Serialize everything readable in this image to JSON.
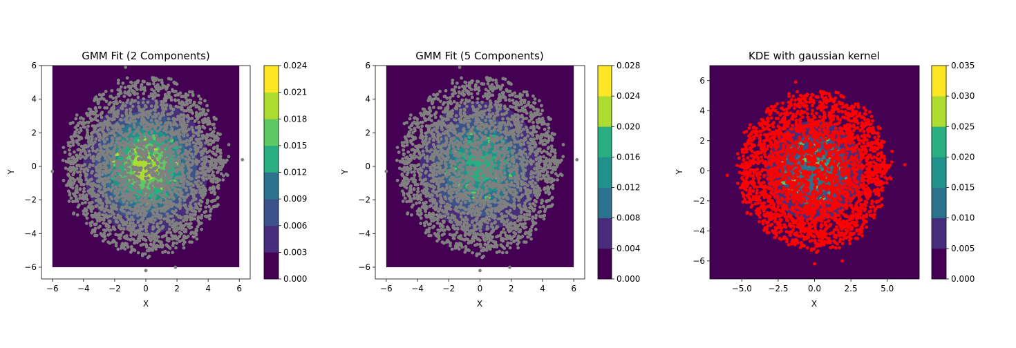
{
  "chart_data": [
    {
      "type": "contourf+scatter",
      "title": "GMM Fit (2 Components)",
      "xlabel": "X",
      "ylabel": "Y",
      "xlim": [
        -6.7,
        6.7
      ],
      "ylim": [
        -6.7,
        6.0
      ],
      "xticks": [
        -6,
        -4,
        -2,
        0,
        2,
        4,
        6
      ],
      "yticks": [
        -6,
        -4,
        -2,
        0,
        2,
        4,
        6
      ],
      "contour_extent": [
        -6,
        6,
        -6,
        6
      ],
      "colorbar": {
        "levels": [
          0.0,
          0.003,
          0.006,
          0.009,
          0.012,
          0.015,
          0.018,
          0.021,
          0.024
        ],
        "tick_labels": [
          "0.000",
          "0.003",
          "0.006",
          "0.009",
          "0.012",
          "0.015",
          "0.018",
          "0.021",
          "0.024"
        ]
      },
      "density_peak": 0.023,
      "density_sigma": 2.0,
      "points_color": "#808080",
      "grid": false
    },
    {
      "type": "contourf+scatter",
      "title": "GMM Fit (5 Components)",
      "xlabel": "X",
      "ylabel": "Y",
      "xlim": [
        -6.7,
        6.7
      ],
      "ylim": [
        -6.7,
        6.0
      ],
      "xticks": [
        -6,
        -4,
        -2,
        0,
        2,
        4,
        6
      ],
      "yticks": [
        -6,
        -4,
        -2,
        0,
        2,
        4,
        6
      ],
      "contour_extent": [
        -6,
        6,
        -6,
        6
      ],
      "colorbar": {
        "levels": [
          0.0,
          0.004,
          0.008,
          0.012,
          0.016,
          0.02,
          0.024,
          0.028
        ],
        "tick_labels": [
          "0.000",
          "0.004",
          "0.008",
          "0.012",
          "0.016",
          "0.020",
          "0.024",
          "0.028"
        ]
      },
      "density_peak": 0.022,
      "density_sigma": 2.1,
      "points_color": "#808080",
      "grid": false
    },
    {
      "type": "contourf+scatter",
      "title": "KDE with gaussian kernel",
      "xlabel": "X",
      "ylabel": "Y",
      "xlim": [
        -7.2,
        7.2
      ],
      "ylim": [
        -7.2,
        7.0
      ],
      "xticks": [
        -5.0,
        -2.5,
        0.0,
        2.5,
        5.0
      ],
      "xtick_labels": [
        "−5.0",
        "−2.5",
        "0.0",
        "2.5",
        "5.0"
      ],
      "yticks": [
        -6,
        -4,
        -2,
        0,
        2,
        4,
        6
      ],
      "contour_extent": [
        -7.2,
        7.2,
        -7.2,
        7.0
      ],
      "colorbar": {
        "levels": [
          0.0,
          0.005,
          0.01,
          0.015,
          0.02,
          0.025,
          0.03,
          0.035
        ],
        "tick_labels": [
          "0.000",
          "0.005",
          "0.010",
          "0.015",
          "0.020",
          "0.025",
          "0.030",
          "0.035"
        ]
      },
      "density_peak": 0.02,
      "density_sigma": 2.0,
      "points_color": "#ff0000",
      "grid": false
    }
  ],
  "colors": {
    "viridis_bands": [
      "#440154",
      "#472d7b",
      "#3b528b",
      "#2c728e",
      "#21918c",
      "#28ae80",
      "#5ec962",
      "#addc30",
      "#fde725"
    ]
  }
}
